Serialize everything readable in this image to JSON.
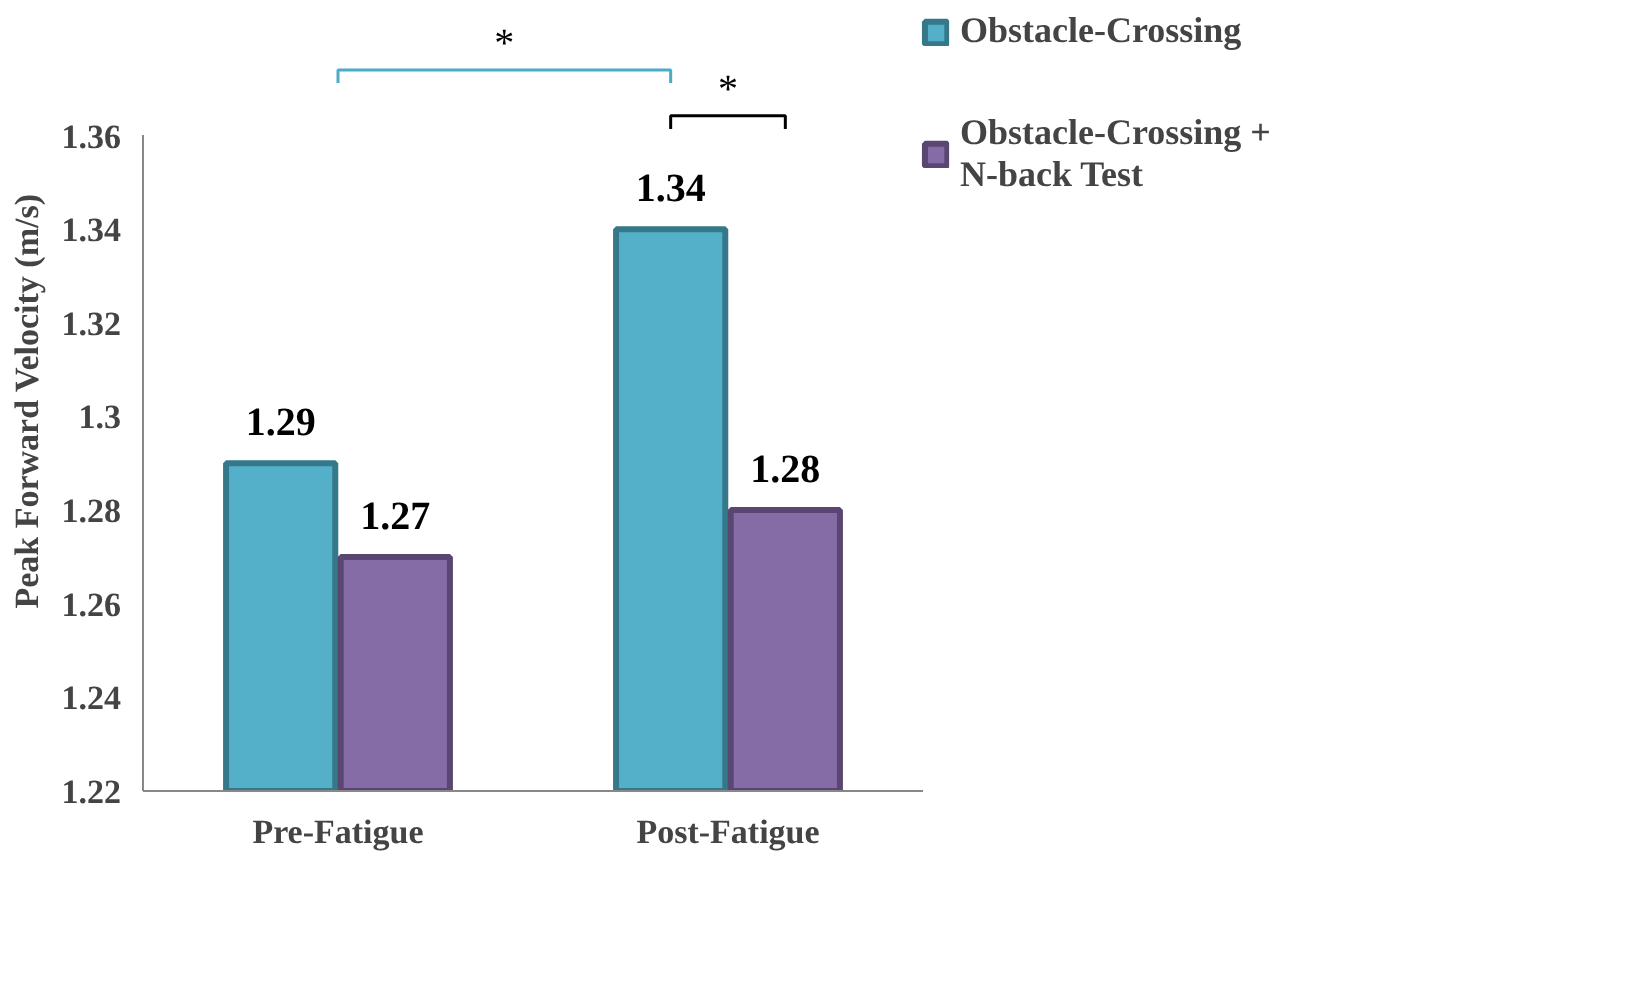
{
  "chart_data": {
    "type": "bar",
    "ylabel": "Peak Forward Velocity (m/s)",
    "categories": [
      "Pre-Fatigue",
      "Post-Fatigue"
    ],
    "series": [
      {
        "name": "Obstacle-Crossing",
        "color": "#4bacc6",
        "values": [
          1.29,
          1.34
        ]
      },
      {
        "name": "Obstacle-Crossing + N-back Test",
        "color": "#8064a2",
        "values": [
          1.27,
          1.28
        ]
      }
    ],
    "ylim": [
      1.22,
      1.36
    ],
    "yticks": [
      1.22,
      1.24,
      1.26,
      1.28,
      1.3,
      1.32,
      1.34,
      1.36
    ],
    "grid": false,
    "legend": "right",
    "data_labels": true,
    "annotations": [
      "*",
      "*"
    ]
  }
}
